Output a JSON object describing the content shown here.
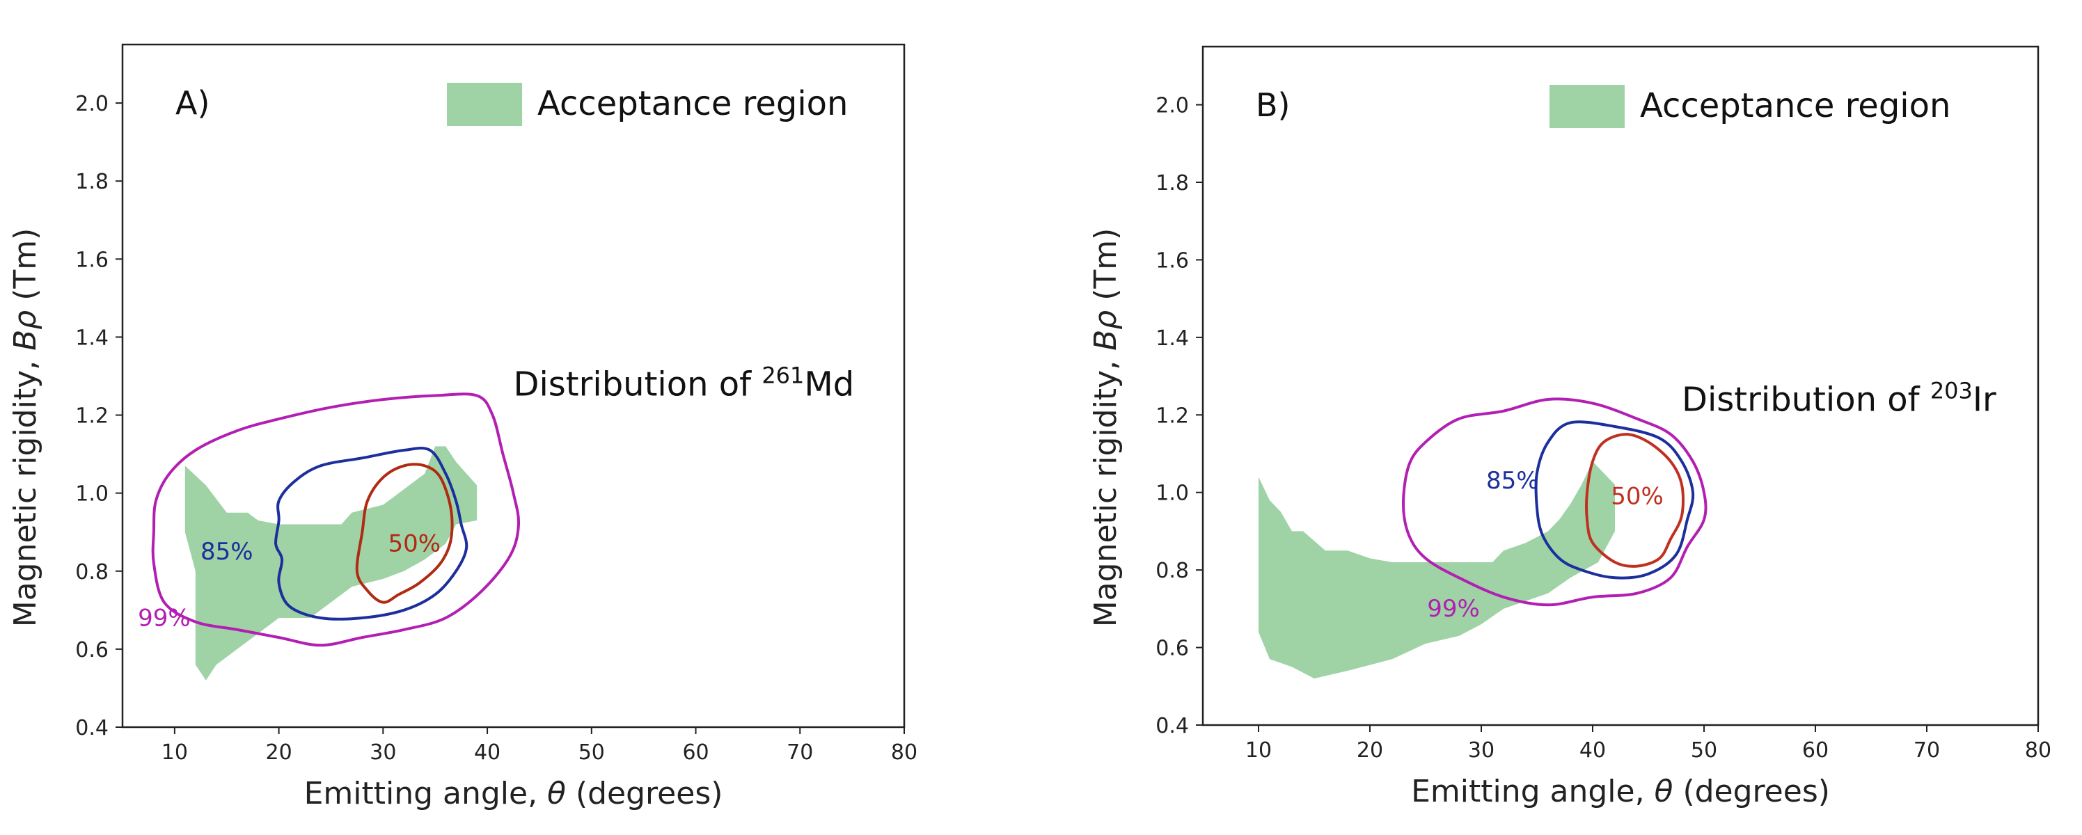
{
  "chart_data": [
    {
      "type": "contour",
      "panel_label": "A)",
      "xlabel_prefix": "Emitting angle, ",
      "xlabel_symbol": "θ",
      "xlabel_suffix": " (degrees)",
      "ylabel_prefix": "Magnetic rigidity, ",
      "ylabel_symbol": "Bρ",
      "ylabel_suffix": "  (Tm)",
      "xlim": [
        5,
        80
      ],
      "ylim": [
        0.4,
        2.15
      ],
      "xticks": [
        10,
        20,
        30,
        40,
        50,
        60,
        70,
        80
      ],
      "yticks": [
        0.4,
        0.6,
        0.8,
        1.0,
        1.2,
        1.4,
        1.6,
        1.8,
        2.0
      ],
      "ytick_labels": [
        "0.4",
        "0.6",
        "0.8",
        "1.0",
        "1.2",
        "1.4",
        "1.6",
        "1.8",
        "2.0"
      ],
      "legend": {
        "label": "Acceptance region",
        "color": "#9fd3a6"
      },
      "annotation": {
        "prefix": "Distribution of ",
        "mass": "261",
        "element": "Md",
        "x": 42.5,
        "y": 1.25
      },
      "acceptance_region": [
        [
          11.0,
          1.07
        ],
        [
          13.0,
          1.02
        ],
        [
          15.0,
          0.95
        ],
        [
          17.0,
          0.95
        ],
        [
          18.0,
          0.93
        ],
        [
          20.0,
          0.92
        ],
        [
          24.0,
          0.92
        ],
        [
          26.0,
          0.92
        ],
        [
          27.0,
          0.95
        ],
        [
          30.0,
          0.97
        ],
        [
          32.0,
          1.01
        ],
        [
          34.0,
          1.05
        ],
        [
          35.0,
          1.12
        ],
        [
          36.0,
          1.12
        ],
        [
          37.0,
          1.08
        ],
        [
          39.0,
          1.02
        ],
        [
          39.0,
          0.93
        ],
        [
          37.0,
          0.92
        ],
        [
          36.0,
          0.87
        ],
        [
          34.0,
          0.83
        ],
        [
          32.0,
          0.8
        ],
        [
          30.0,
          0.78
        ],
        [
          27.0,
          0.76
        ],
        [
          25.0,
          0.72
        ],
        [
          23.0,
          0.68
        ],
        [
          20.0,
          0.68
        ],
        [
          18.0,
          0.64
        ],
        [
          16.0,
          0.6
        ],
        [
          14.0,
          0.56
        ],
        [
          13.0,
          0.52
        ],
        [
          12.0,
          0.56
        ],
        [
          12.0,
          0.8
        ],
        [
          11.0,
          0.9
        ]
      ],
      "series": [
        {
          "name": "99%",
          "color": "#b21fb2",
          "label_x": 9.0,
          "label_y": 0.66,
          "points": [
            [
              8.0,
              0.9
            ],
            [
              8.2,
              0.98
            ],
            [
              9.5,
              1.05
            ],
            [
              12.0,
              1.11
            ],
            [
              16.0,
              1.16
            ],
            [
              20.0,
              1.19
            ],
            [
              25.0,
              1.22
            ],
            [
              30.0,
              1.24
            ],
            [
              35.0,
              1.25
            ],
            [
              39.0,
              1.25
            ],
            [
              40.5,
              1.2
            ],
            [
              41.5,
              1.1
            ],
            [
              42.5,
              1.0
            ],
            [
              43.0,
              0.92
            ],
            [
              42.2,
              0.84
            ],
            [
              39.5,
              0.75
            ],
            [
              36.0,
              0.68
            ],
            [
              32.0,
              0.65
            ],
            [
              28.0,
              0.63
            ],
            [
              24.0,
              0.61
            ],
            [
              20.0,
              0.63
            ],
            [
              16.0,
              0.65
            ],
            [
              12.0,
              0.67
            ],
            [
              9.0,
              0.72
            ],
            [
              8.0,
              0.82
            ]
          ]
        },
        {
          "name": "85%",
          "color": "#1c2f9c",
          "label_x": 15.0,
          "label_y": 0.83,
          "points": [
            [
              20.0,
              0.98
            ],
            [
              21.5,
              1.03
            ],
            [
              24.0,
              1.07
            ],
            [
              28.0,
              1.09
            ],
            [
              32.0,
              1.11
            ],
            [
              34.5,
              1.11
            ],
            [
              36.0,
              1.05
            ],
            [
              37.0,
              0.98
            ],
            [
              37.5,
              0.92
            ],
            [
              38.0,
              0.86
            ],
            [
              37.0,
              0.8
            ],
            [
              35.0,
              0.74
            ],
            [
              32.0,
              0.7
            ],
            [
              28.0,
              0.68
            ],
            [
              24.0,
              0.68
            ],
            [
              21.0,
              0.71
            ],
            [
              20.0,
              0.77
            ],
            [
              20.3,
              0.83
            ],
            [
              19.7,
              0.87
            ],
            [
              20.0,
              0.93
            ]
          ]
        },
        {
          "name": "50%",
          "color": "#b12a12",
          "label_x": 33.0,
          "label_y": 0.85,
          "points": [
            [
              28.0,
              0.9
            ],
            [
              28.5,
              0.98
            ],
            [
              30.0,
              1.04
            ],
            [
              32.0,
              1.07
            ],
            [
              34.0,
              1.07
            ],
            [
              35.5,
              1.04
            ],
            [
              36.5,
              0.96
            ],
            [
              36.5,
              0.88
            ],
            [
              35.5,
              0.82
            ],
            [
              33.5,
              0.77
            ],
            [
              31.5,
              0.74
            ],
            [
              30.0,
              0.72
            ],
            [
              28.5,
              0.75
            ],
            [
              27.5,
              0.8
            ]
          ]
        }
      ]
    },
    {
      "type": "contour",
      "panel_label": "B)",
      "xlabel_prefix": "Emitting angle, ",
      "xlabel_symbol": "θ",
      "xlabel_suffix": " (degrees)",
      "ylabel_prefix": "Magnetic rigidity, ",
      "ylabel_symbol": "Bρ",
      "ylabel_suffix": "  (Tm)",
      "xlim": [
        5,
        80
      ],
      "ylim": [
        0.4,
        2.15
      ],
      "xticks": [
        10,
        20,
        30,
        40,
        50,
        60,
        70,
        80
      ],
      "yticks": [
        0.4,
        0.6,
        0.8,
        1.0,
        1.2,
        1.4,
        1.6,
        1.8,
        2.0
      ],
      "ytick_labels": [
        "0.4",
        "0.6",
        "0.8",
        "1.0",
        "1.2",
        "1.4",
        "1.6",
        "1.8",
        "2.0"
      ],
      "legend": {
        "label": "Acceptance region",
        "color": "#9fd3a6"
      },
      "annotation": {
        "prefix": "Distribution of ",
        "mass": "203",
        "element": "Ir",
        "x": 48.0,
        "y": 1.21
      },
      "acceptance_region": [
        [
          10.0,
          1.04
        ],
        [
          11.0,
          0.98
        ],
        [
          12.0,
          0.95
        ],
        [
          13.0,
          0.9
        ],
        [
          14.0,
          0.9
        ],
        [
          16.0,
          0.85
        ],
        [
          18.0,
          0.85
        ],
        [
          20.0,
          0.83
        ],
        [
          22.0,
          0.82
        ],
        [
          28.0,
          0.82
        ],
        [
          31.0,
          0.82
        ],
        [
          32.0,
          0.85
        ],
        [
          34.0,
          0.87
        ],
        [
          36.0,
          0.9
        ],
        [
          37.0,
          0.93
        ],
        [
          38.0,
          0.97
        ],
        [
          39.0,
          1.02
        ],
        [
          40.0,
          1.08
        ],
        [
          41.0,
          1.05
        ],
        [
          42.0,
          1.02
        ],
        [
          42.0,
          0.9
        ],
        [
          40.5,
          0.82
        ],
        [
          38.0,
          0.78
        ],
        [
          36.0,
          0.74
        ],
        [
          32.0,
          0.7
        ],
        [
          30.0,
          0.66
        ],
        [
          28.0,
          0.63
        ],
        [
          25.0,
          0.61
        ],
        [
          22.0,
          0.57
        ],
        [
          18.0,
          0.54
        ],
        [
          15.0,
          0.52
        ],
        [
          13.0,
          0.55
        ],
        [
          11.0,
          0.57
        ],
        [
          10.0,
          0.64
        ],
        [
          10.0,
          0.85
        ]
      ],
      "series": [
        {
          "name": "99%",
          "color": "#b21fb2",
          "label_x": 27.5,
          "label_y": 0.68,
          "points": [
            [
              23.0,
              0.97
            ],
            [
              23.5,
              1.07
            ],
            [
              25.0,
              1.13
            ],
            [
              28.0,
              1.19
            ],
            [
              32.0,
              1.21
            ],
            [
              36.0,
              1.24
            ],
            [
              40.0,
              1.23
            ],
            [
              44.0,
              1.19
            ],
            [
              47.0,
              1.15
            ],
            [
              49.0,
              1.08
            ],
            [
              50.0,
              1.0
            ],
            [
              50.0,
              0.93
            ],
            [
              48.5,
              0.86
            ],
            [
              47.0,
              0.78
            ],
            [
              44.0,
              0.74
            ],
            [
              40.0,
              0.73
            ],
            [
              36.0,
              0.71
            ],
            [
              32.0,
              0.73
            ],
            [
              28.0,
              0.78
            ],
            [
              25.0,
              0.83
            ],
            [
              23.5,
              0.89
            ]
          ]
        },
        {
          "name": "85%",
          "color": "#1c2f9c",
          "label_x": 32.8,
          "label_y": 1.01,
          "points": [
            [
              35.0,
              1.05
            ],
            [
              36.0,
              1.13
            ],
            [
              38.0,
              1.18
            ],
            [
              42.0,
              1.17
            ],
            [
              46.0,
              1.14
            ],
            [
              48.0,
              1.08
            ],
            [
              49.0,
              1.0
            ],
            [
              48.5,
              0.93
            ],
            [
              47.5,
              0.84
            ],
            [
              45.0,
              0.79
            ],
            [
              42.0,
              0.78
            ],
            [
              39.0,
              0.8
            ],
            [
              37.0,
              0.83
            ],
            [
              35.5,
              0.89
            ],
            [
              35.0,
              0.96
            ]
          ]
        },
        {
          "name": "50%",
          "color": "#c03020",
          "label_x": 44.0,
          "label_y": 0.97,
          "points": [
            [
              40.0,
              1.08
            ],
            [
              41.0,
              1.13
            ],
            [
              43.0,
              1.15
            ],
            [
              45.0,
              1.13
            ],
            [
              47.0,
              1.08
            ],
            [
              48.0,
              1.02
            ],
            [
              48.0,
              0.94
            ],
            [
              47.0,
              0.88
            ],
            [
              46.0,
              0.83
            ],
            [
              44.0,
              0.81
            ],
            [
              42.0,
              0.82
            ],
            [
              40.0,
              0.87
            ],
            [
              39.5,
              0.93
            ],
            [
              39.5,
              1.0
            ]
          ]
        }
      ]
    }
  ]
}
